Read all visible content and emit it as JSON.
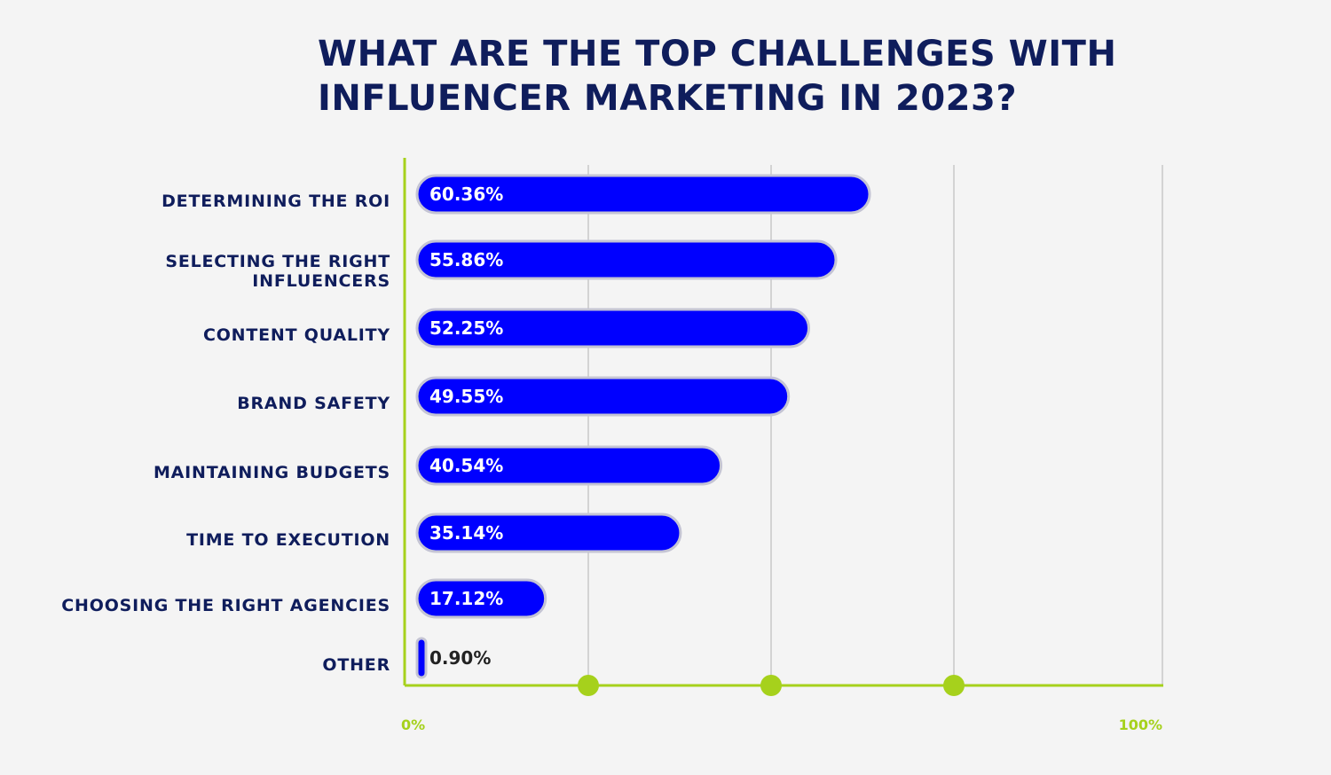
{
  "chart_data": {
    "type": "bar",
    "orientation": "horizontal",
    "title": "WHAT ARE THE TOP CHALLENGES WITH INFLUENCER MARKETING IN 2023?",
    "categories": [
      "DETERMINING THE ROI",
      "SELECTING THE RIGHT INFLUENCERS",
      "CONTENT QUALITY",
      "BRAND SAFETY",
      "MAINTAINING BUDGETS",
      "TIME TO EXECUTION",
      "CHOOSING THE RIGHT AGENCIES",
      "OTHER"
    ],
    "values": [
      60.36,
      55.86,
      52.25,
      49.55,
      40.54,
      35.14,
      17.12,
      0.9
    ],
    "value_labels": [
      "60.36%",
      "55.86%",
      "52.25%",
      "49.55%",
      "40.54%",
      "35.14%",
      "17.12%",
      "0.90%"
    ],
    "xlim": [
      0,
      100
    ],
    "x_tick_labels": [
      "0%",
      "100%"
    ],
    "grid": true,
    "colors": {
      "bar": "#0000ff",
      "axis": "#a6d11c",
      "title": "#0f1d5c",
      "grid": "#c8c8c8"
    }
  }
}
